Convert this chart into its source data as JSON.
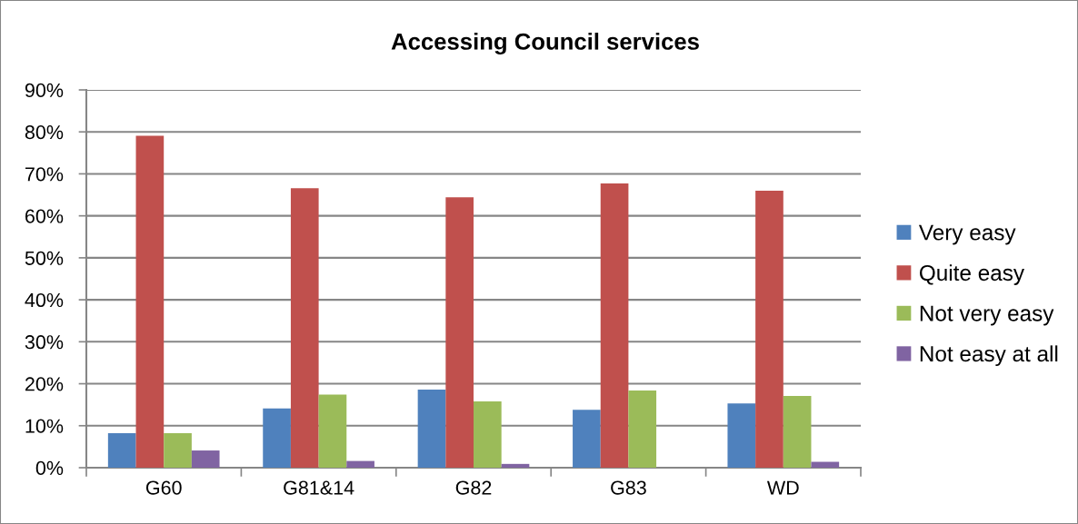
{
  "chart_data": {
    "type": "bar",
    "title": "Accessing Council services",
    "categories": [
      "G60",
      "G81&14",
      "G82",
      "G83",
      "WD"
    ],
    "series": [
      {
        "name": "Very easy",
        "color": "#4f81bd",
        "values": [
          8.2,
          14.1,
          18.6,
          13.8,
          15.3
        ]
      },
      {
        "name": "Quite easy",
        "color": "#c0504d",
        "values": [
          79.1,
          66.6,
          64.4,
          67.7,
          66.0
        ]
      },
      {
        "name": "Not very easy",
        "color": "#9bbb59",
        "values": [
          8.2,
          17.4,
          15.8,
          18.4,
          17.1
        ]
      },
      {
        "name": "Not easy at all",
        "color": "#8064a2",
        "values": [
          4.1,
          1.6,
          0.9,
          0,
          1.4
        ]
      }
    ],
    "ylim": [
      0,
      90
    ],
    "yticks": [
      {
        "value": 0,
        "label": "0%"
      },
      {
        "value": 10,
        "label": "10%"
      },
      {
        "value": 20,
        "label": "20%"
      },
      {
        "value": 30,
        "label": "30%"
      },
      {
        "value": 40,
        "label": "40%"
      },
      {
        "value": 50,
        "label": "50%"
      },
      {
        "value": 60,
        "label": "60%"
      },
      {
        "value": 70,
        "label": "70%"
      },
      {
        "value": 80,
        "label": "80%"
      },
      {
        "value": 90,
        "label": "90%"
      }
    ],
    "grid": "y",
    "legend": "right"
  }
}
